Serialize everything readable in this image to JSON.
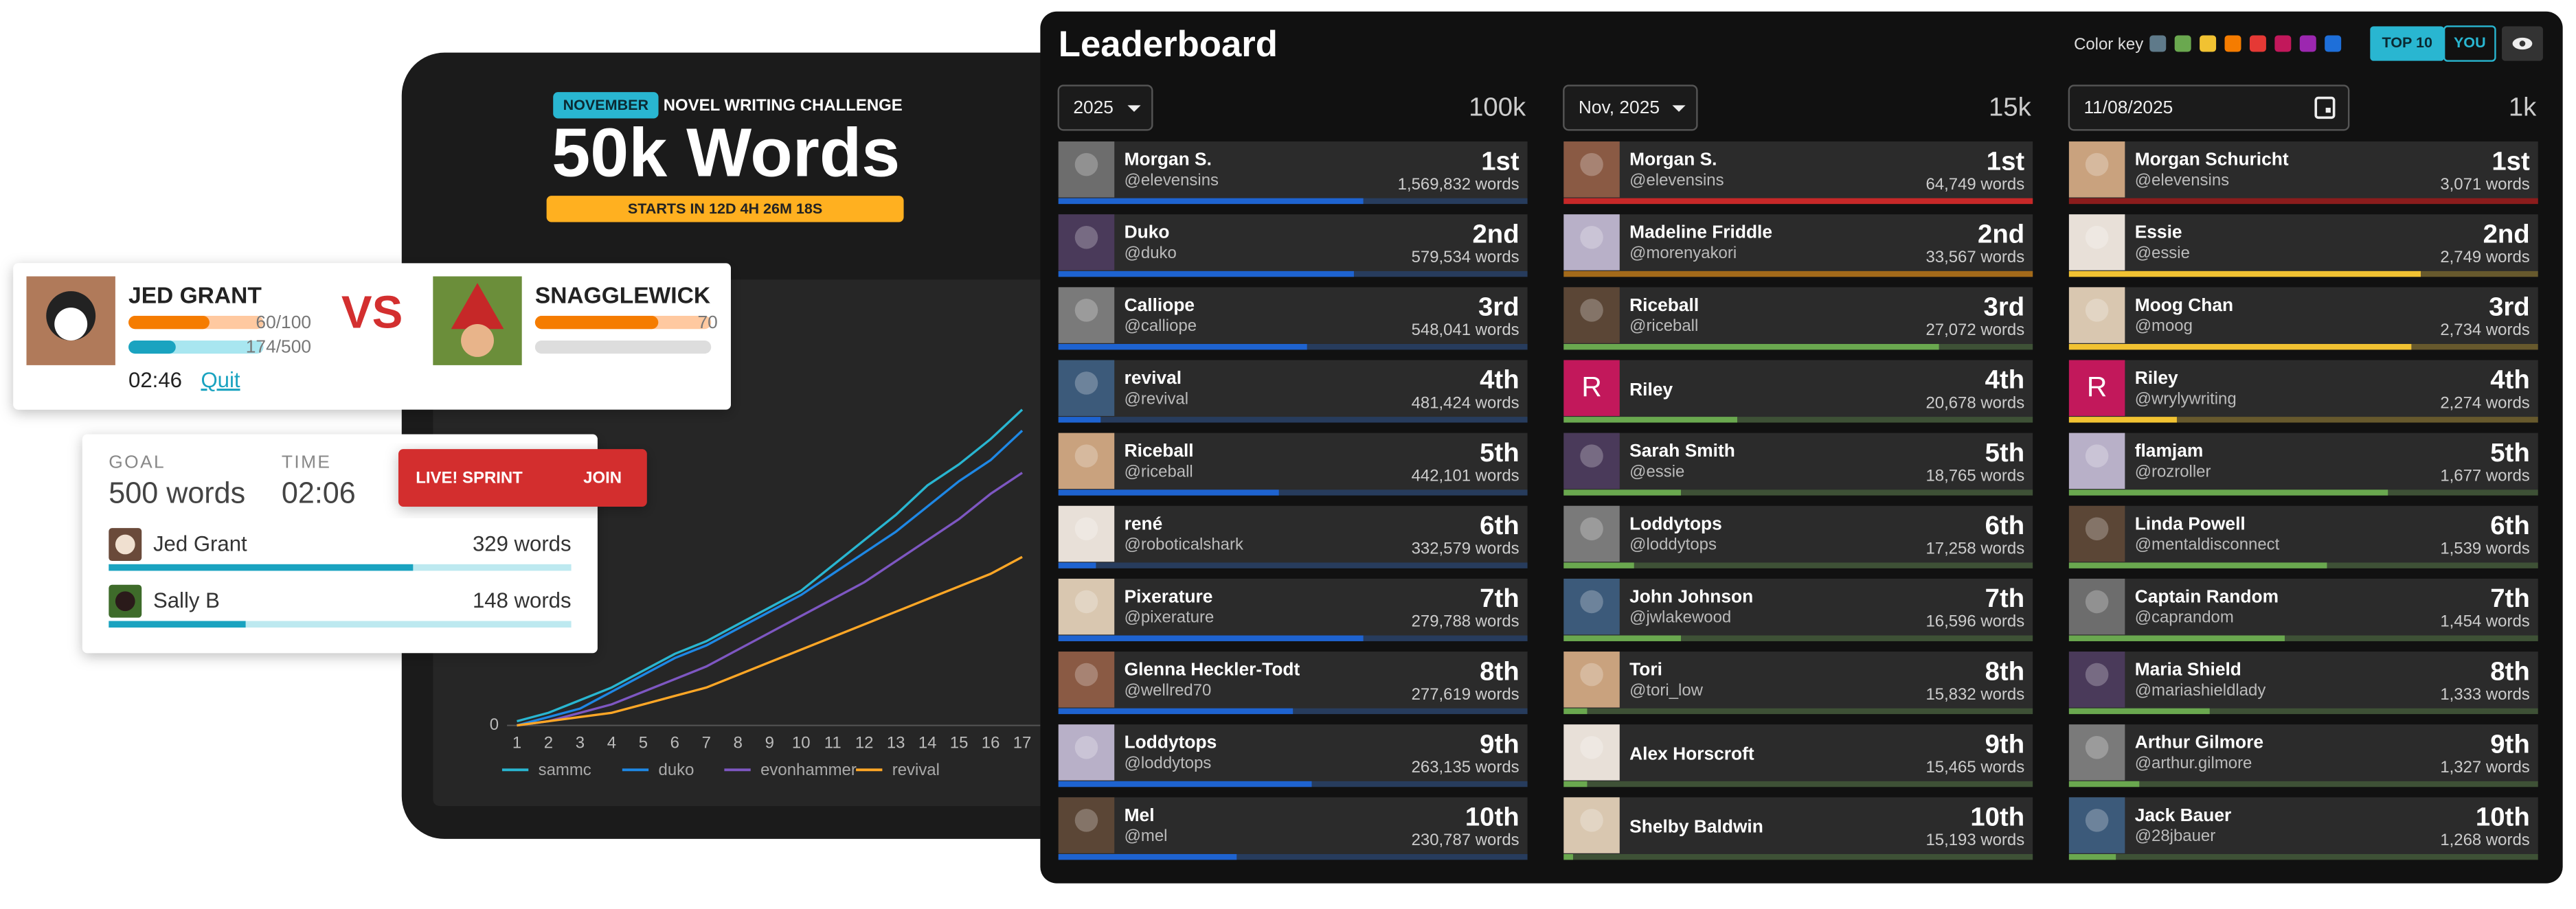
{
  "chart_data": {
    "type": "line",
    "x": [
      1,
      2,
      3,
      4,
      5,
      6,
      7,
      8,
      9,
      10,
      11,
      12,
      13,
      14,
      15,
      16,
      17
    ],
    "xlim": [
      1,
      17
    ],
    "xticks": [
      1,
      2,
      3,
      4,
      5,
      6,
      7,
      8,
      9,
      10,
      11,
      12,
      13,
      14,
      15,
      16,
      17
    ],
    "ylim": [
      0,
      100
    ],
    "yticks": [
      0
    ],
    "grid": true,
    "series": [
      {
        "name": "sammc",
        "color": "#29b6d1",
        "values": [
          1,
          3,
          6,
          9,
          13,
          17,
          20,
          24,
          28,
          32,
          38,
          44,
          50,
          57,
          62,
          68,
          75
        ]
      },
      {
        "name": "duko",
        "color": "#1e88e5",
        "values": [
          0,
          2,
          4,
          8,
          12,
          16,
          19,
          23,
          27,
          31,
          36,
          41,
          46,
          52,
          58,
          63,
          70
        ]
      },
      {
        "name": "evonhammer",
        "color": "#7e57c2",
        "values": [
          0,
          1,
          3,
          5,
          8,
          11,
          14,
          18,
          22,
          26,
          30,
          34,
          39,
          44,
          49,
          55,
          60
        ]
      },
      {
        "name": "revival",
        "color": "#ffa726",
        "values": [
          0,
          1,
          2,
          3,
          5,
          7,
          9,
          12,
          15,
          18,
          21,
          24,
          27,
          30,
          33,
          36,
          40
        ]
      }
    ]
  },
  "challenge": {
    "badge": "NOVEMBER",
    "subtitle": "NOVEL WRITING CHALLENGE",
    "title": "50k Words",
    "countdown": "STARTS IN 12D 4H 26M 18S"
  },
  "versus": {
    "left": {
      "name": "JED GRANT",
      "bars": [
        {
          "label": "60/100",
          "progress": 0.6,
          "color": "#f57c00",
          "track": "#ffc9a0"
        },
        {
          "label": "174/500",
          "progress": 0.35,
          "color": "#1aa3c0",
          "track": "#a8e6f0"
        }
      ]
    },
    "vs": "VS",
    "right": {
      "name": "SNAGGLEWICK",
      "bars": [
        {
          "label": "70",
          "progress": 0.7,
          "color": "#f57c00",
          "track": "#ffc9a0"
        },
        {
          "progress": 0,
          "color": "#bbbbbb",
          "track": "#dddddd"
        }
      ]
    },
    "timer": "02:46",
    "quit": "Quit"
  },
  "sprint": {
    "goal_label": "GOAL",
    "goal": "500 words",
    "time_label": "TIME",
    "time": "02:06",
    "badge": "LIVE! SPRINT",
    "join": "JOIN",
    "writers": [
      {
        "name": "Jed Grant",
        "words": "329 words",
        "progress": 0.658
      },
      {
        "name": "Sally B",
        "words": "148 words",
        "progress": 0.296
      }
    ]
  },
  "leaderboard": {
    "title": "Leaderboard",
    "color_key_label": "Color key",
    "color_key": [
      "#5f7a8a",
      "#6aa84f",
      "#f1c232",
      "#f57c00",
      "#e53935",
      "#c2185b",
      "#9c27b0",
      "#1e6fd9"
    ],
    "toggles": [
      "TOP 10",
      "YOU"
    ],
    "columns": [
      {
        "filter": "2025",
        "goal": "100k",
        "entries": [
          {
            "name": "Morgan S.",
            "handle": "@elevensins",
            "rank": "1st",
            "words": "1,569,832 words",
            "progress": 0.65,
            "color": "#1e63d0"
          },
          {
            "name": "Duko",
            "handle": "@duko",
            "rank": "2nd",
            "words": "579,534 words",
            "progress": 0.63,
            "color": "#1e63d0"
          },
          {
            "name": "Calliope",
            "handle": "@calliope",
            "rank": "3rd",
            "words": "548,041 words",
            "progress": 0.53,
            "color": "#1e63d0"
          },
          {
            "name": "revival",
            "handle": "@revival",
            "rank": "4th",
            "words": "481,424 words",
            "progress": 0.09,
            "color": "#1e63d0"
          },
          {
            "name": "Riceball",
            "handle": "@riceball",
            "rank": "5th",
            "words": "442,101 words",
            "progress": 0.47,
            "color": "#1e63d0"
          },
          {
            "name": "rené",
            "handle": "@roboticalshark",
            "rank": "6th",
            "words": "332,579 words",
            "progress": 0.08,
            "color": "#1e63d0"
          },
          {
            "name": "Pixerature",
            "handle": "@pixerature",
            "rank": "7th",
            "words": "279,788 words",
            "progress": 0.65,
            "color": "#1e63d0"
          },
          {
            "name": "Glenna Heckler-Todt",
            "handle": "@wellred70",
            "rank": "8th",
            "words": "277,619 words",
            "progress": 0.5,
            "color": "#1e63d0"
          },
          {
            "name": "Loddytops",
            "handle": "@loddytops",
            "rank": "9th",
            "words": "263,135 words",
            "progress": 0.54,
            "color": "#1e63d0"
          },
          {
            "name": "Mel",
            "handle": "@mel",
            "rank": "10th",
            "words": "230,787 words",
            "progress": 0.38,
            "color": "#1e63d0"
          }
        ]
      },
      {
        "filter": "Nov, 2025",
        "goal": "15k",
        "entries": [
          {
            "name": "Morgan S.",
            "handle": "@elevensins",
            "rank": "1st",
            "words": "64,749 words",
            "progress": 1,
            "color": "#c62828"
          },
          {
            "name": "Madeline Friddle",
            "handle": "@morenyakori",
            "rank": "2nd",
            "words": "33,567 words",
            "progress": 1,
            "color": "#a36a1a"
          },
          {
            "name": "Riceball",
            "handle": "@riceball",
            "rank": "3rd",
            "words": "27,072 words",
            "progress": 0.8,
            "color": "#6aa84f"
          },
          {
            "name": "Riley",
            "rank": "4th",
            "words": "20,678 words",
            "progress": 0.37,
            "color": "#6aa84f",
            "avatar_letter": "R"
          },
          {
            "name": "Sarah Smith",
            "handle": "@essie",
            "rank": "5th",
            "words": "18,765 words",
            "progress": 0.25,
            "color": "#6aa84f"
          },
          {
            "name": "Loddytops",
            "handle": "@loddytops",
            "rank": "6th",
            "words": "17,258 words",
            "progress": 0.15,
            "color": "#6aa84f"
          },
          {
            "name": "John Johnson",
            "handle": "@jwlakewood",
            "rank": "7th",
            "words": "16,596 words",
            "progress": 0.25,
            "color": "#6aa84f"
          },
          {
            "name": "Tori",
            "handle": "@tori_low",
            "rank": "8th",
            "words": "15,832 words",
            "progress": 0.05,
            "color": "#6aa84f"
          },
          {
            "name": "Alex Horscroft",
            "rank": "9th",
            "words": "15,465 words",
            "progress": 0.05,
            "color": "#6aa84f"
          },
          {
            "name": "Shelby Baldwin",
            "rank": "10th",
            "words": "15,193 words",
            "progress": 0.02,
            "color": "#6aa84f"
          }
        ]
      },
      {
        "filter": "11/08/2025",
        "goal": "1k",
        "entries": [
          {
            "name": "Morgan Schuricht",
            "handle": "@elevensins",
            "rank": "1st",
            "words": "3,071 words",
            "progress": 1,
            "color": "#8b1c1c"
          },
          {
            "name": "Essie",
            "handle": "@essie",
            "rank": "2nd",
            "words": "2,749 words",
            "progress": 0.75,
            "color": "#f1c232"
          },
          {
            "name": "Moog Chan",
            "handle": "@moog",
            "rank": "3rd",
            "words": "2,734 words",
            "progress": 0.73,
            "color": "#f1c232"
          },
          {
            "name": "Riley",
            "handle": "@wrylywriting",
            "rank": "4th",
            "words": "2,274 words",
            "progress": 0.23,
            "color": "#f1c232",
            "avatar_letter": "R"
          },
          {
            "name": "flamjam",
            "handle": "@rozroller",
            "rank": "5th",
            "words": "1,677 words",
            "progress": 0.68,
            "color": "#6aa84f"
          },
          {
            "name": "Linda Powell",
            "handle": "@mentaldisconnect",
            "rank": "6th",
            "words": "1,539 words",
            "progress": 0.55,
            "color": "#6aa84f"
          },
          {
            "name": "Captain Random",
            "handle": "@caprandom",
            "rank": "7th",
            "words": "1,454 words",
            "progress": 0.46,
            "color": "#6aa84f"
          },
          {
            "name": "Maria Shield",
            "handle": "@mariashieldlady",
            "rank": "8th",
            "words": "1,333 words",
            "progress": 0.3,
            "color": "#6aa84f"
          },
          {
            "name": "Arthur Gilmore",
            "handle": "@arthur.gilmore",
            "rank": "9th",
            "words": "1,327 words",
            "progress": 0.15,
            "color": "#6aa84f"
          },
          {
            "name": "Jack Bauer",
            "handle": "@28jbauer",
            "rank": "10th",
            "words": "1,268 words",
            "progress": 0.1,
            "color": "#6aa84f"
          }
        ]
      }
    ]
  }
}
